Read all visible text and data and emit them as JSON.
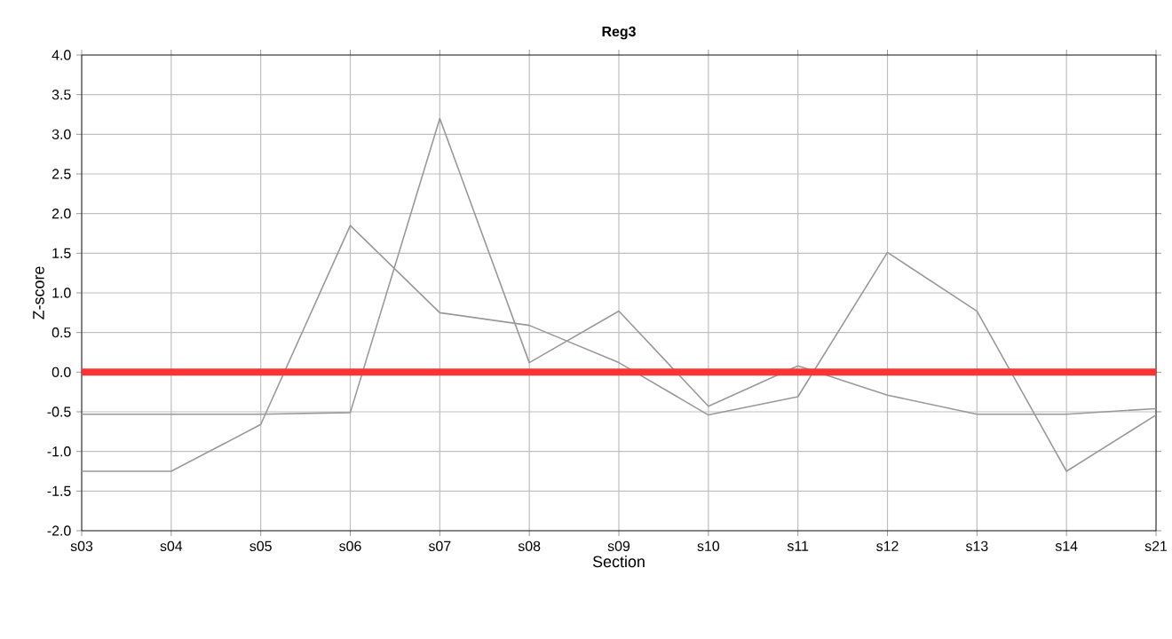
{
  "chart_data": {
    "type": "line",
    "title": "Reg3",
    "xlabel": "Section",
    "ylabel": "Z-score",
    "categories": [
      "s03",
      "s04",
      "s05",
      "s06",
      "s07",
      "s08",
      "s09",
      "s10",
      "s11",
      "s12",
      "s13",
      "s14",
      "s21"
    ],
    "series": [
      {
        "color": "#999999",
        "values": [
          -0.53,
          -0.53,
          -0.53,
          -0.51,
          3.2,
          0.12,
          0.77,
          -0.43,
          0.08,
          -0.29,
          -0.53,
          -0.53,
          -0.46
        ]
      },
      {
        "color": "#999999",
        "values": [
          -1.25,
          -1.25,
          -0.66,
          1.85,
          0.75,
          0.59,
          0.12,
          -0.54,
          -0.31,
          1.51,
          0.77,
          -1.25,
          -0.54
        ]
      }
    ],
    "ylim": [
      -2.0,
      4.0
    ],
    "yticks": [
      {
        "value": -2,
        "label": "-2.0"
      },
      {
        "value": -1.5,
        "label": "-1.5"
      },
      {
        "value": -1,
        "label": "-1.0"
      },
      {
        "value": -0.5,
        "label": "-0.5"
      },
      {
        "value": 0,
        "label": "0.0"
      },
      {
        "value": 0.5,
        "label": "0.5"
      },
      {
        "value": 1,
        "label": "1.0"
      },
      {
        "value": 1.5,
        "label": "1.5"
      },
      {
        "value": 2,
        "label": "2.0"
      },
      {
        "value": 2.5,
        "label": "2.5"
      },
      {
        "value": 3,
        "label": "3.0"
      },
      {
        "value": 3.5,
        "label": "3.5"
      },
      {
        "value": 4,
        "label": "4.0"
      }
    ],
    "ref_lines": [
      {
        "axis": "y",
        "value": 0,
        "color": "#ff3333"
      }
    ],
    "grid": true,
    "marker": "none",
    "line_style": "solid"
  }
}
